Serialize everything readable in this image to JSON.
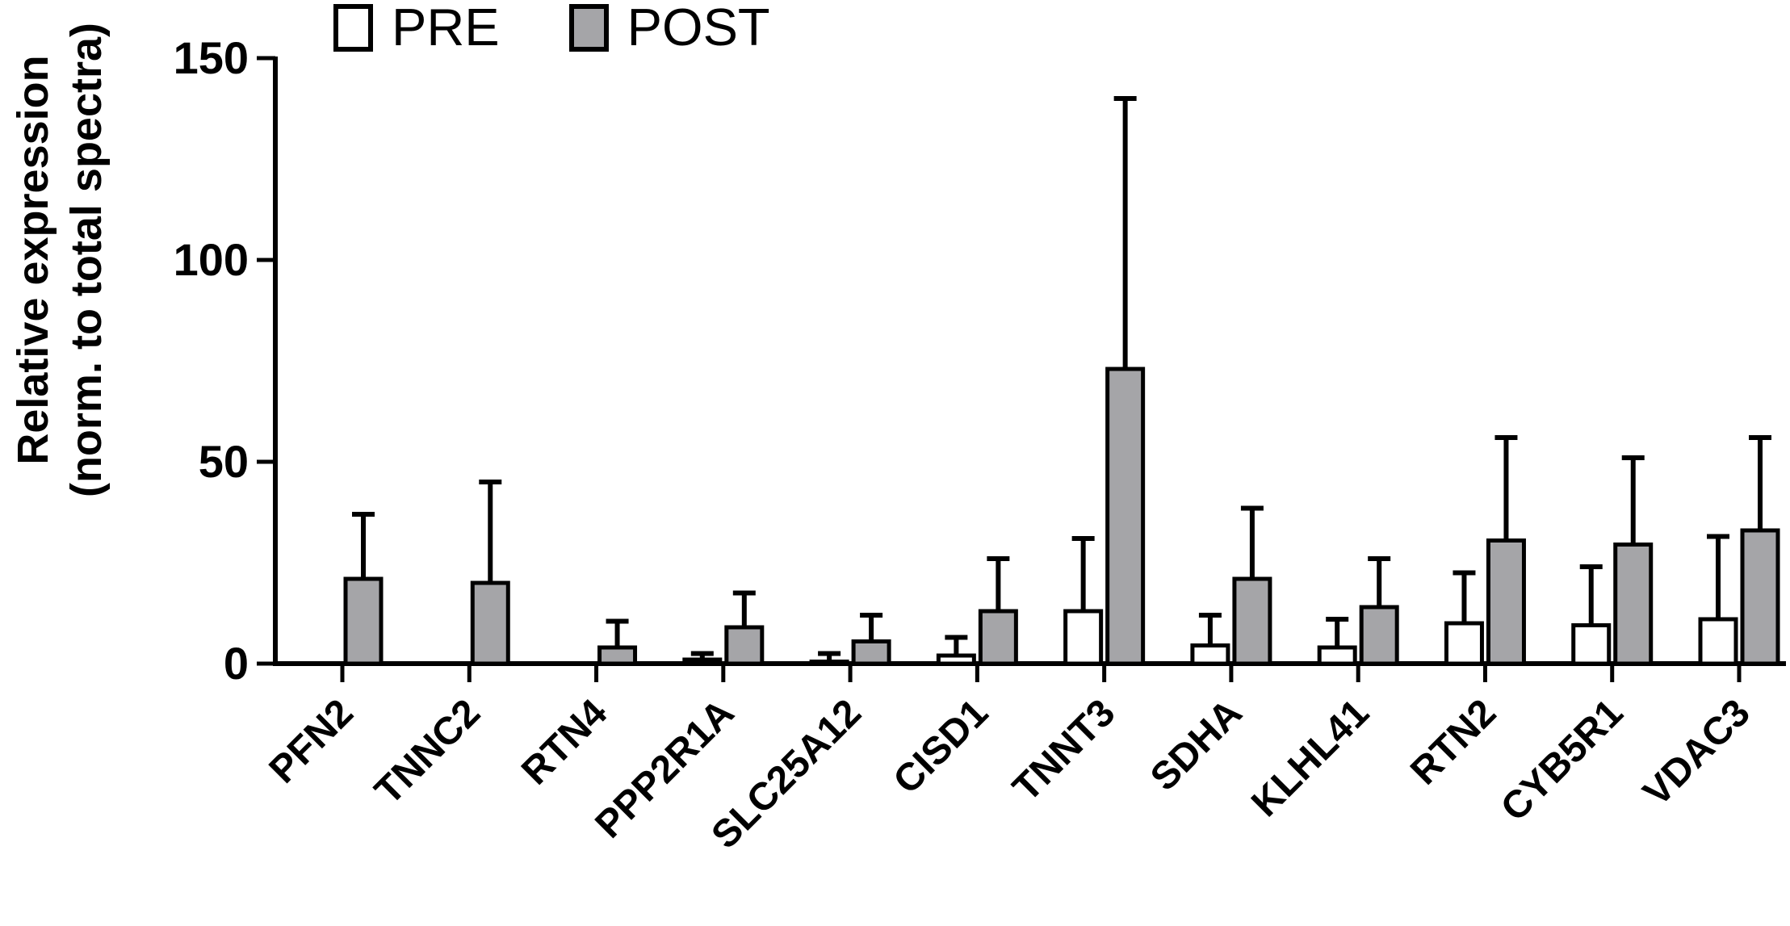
{
  "legend": {
    "pre_label": "PRE",
    "post_label": "POST"
  },
  "axis": {
    "y_title_line1": "Relative expression",
    "y_title_line2": "(norm. to total spectra)"
  },
  "colors": {
    "pre_fill": "#ffffff",
    "post_fill": "#a5a5a8",
    "stroke": "#000000",
    "background": "#ffffff"
  },
  "chart_data": {
    "type": "bar",
    "title": "",
    "ylabel": "Relative expression (norm. to total spectra)",
    "xlabel": "",
    "grid": false,
    "legend_position": "top",
    "error_bars": "upper only, capped",
    "ylim": [
      0,
      150
    ],
    "yticks": [
      0,
      50,
      100,
      150
    ],
    "categories": [
      "PFN2",
      "TNNC2",
      "RTN4",
      "PPP2R1A",
      "SLC25A12",
      "CISD1",
      "TNNT3",
      "SDHA",
      "KLHL41",
      "RTN2",
      "CYB5R1",
      "VDAC3"
    ],
    "series": [
      {
        "name": "PRE",
        "fill": "#ffffff",
        "values": [
          0,
          0,
          0,
          1,
          0.5,
          2,
          13,
          4.5,
          4,
          10,
          9.5,
          11
        ],
        "errors": [
          0,
          0,
          0,
          1.5,
          2,
          4.5,
          18,
          7.5,
          7,
          12.5,
          14.5,
          20.5
        ]
      },
      {
        "name": "POST",
        "fill": "#a5a5a8",
        "values": [
          21,
          20,
          4,
          9,
          5.5,
          13,
          73,
          21,
          14,
          30.5,
          29.5,
          33
        ],
        "errors": [
          16,
          25,
          6.5,
          8.5,
          6.5,
          13,
          67,
          17.5,
          12,
          25.5,
          21.5,
          23
        ]
      }
    ]
  }
}
